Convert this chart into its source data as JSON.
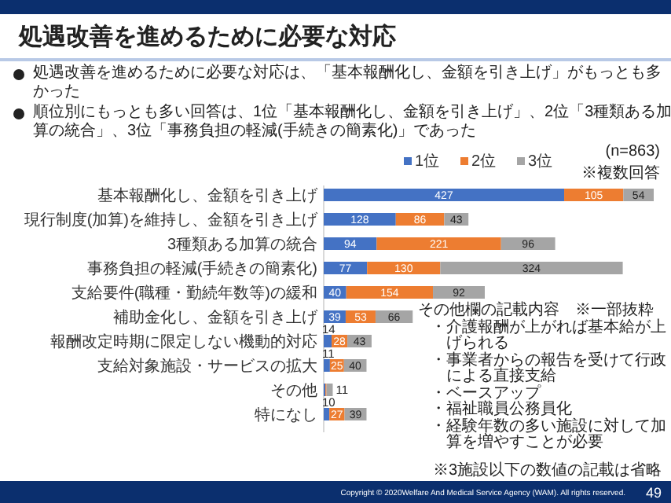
{
  "chart_data": {
    "type": "bar",
    "orientation": "horizontal",
    "stacked": true,
    "legend": "top",
    "title": "処遇改善を進めるために必要な対応",
    "annotations": [
      "処遇改善を進めるために必要な対応は、「基本報酬化し、金額を引き上げ」がもっとも多かった",
      "順位別にもっとも多い回答は、1位「基本報酬化し、金額を引き上げ」、2位「3種類ある加算の統合」、3位「事務負担の軽減(手続きの簡素化)」であった",
      "(n=863)",
      "※複数回答",
      "その他欄の記載内容　※一部抜粋",
      "・介護報酬が上がれば基本給が上げられる",
      "・事業者からの報告を受けて行政による直接支給",
      "・ベースアップ",
      "・福祉職員公務員化",
      "・経験年数の多い施設に対して加算を増やすことが必要",
      "※3施設以下の数値の記載は省略",
      "Copyright © 2020Welfare And Medical Service Agency (WAM). All rights reserved.",
      "49"
    ],
    "categories": [
      "基本報酬化し、金額を引き上げ",
      "現行制度(加算)を維持し、金額を引き上げ",
      "3種類ある加算の統合",
      "事務負担の軽減(手続きの簡素化)",
      "支給要件(職種・勤続年数等)の緩和",
      "補助金化し、金額を引き上げ",
      "報酬改定時期に限定しない機動的対応",
      "支給対象施設・サービスの拡大",
      "その他",
      "特になし"
    ],
    "series": [
      {
        "name": "1位",
        "color": "#4472c4",
        "values": [
          427,
          128,
          94,
          77,
          40,
          39,
          14,
          11,
          3,
          10
        ],
        "value_labels": [
          "427",
          "128",
          "94",
          "77",
          "40",
          "39",
          "14",
          "11",
          null,
          "10"
        ]
      },
      {
        "name": "2位",
        "color": "#ed7d31",
        "values": [
          105,
          86,
          221,
          130,
          154,
          53,
          28,
          25,
          2,
          27
        ],
        "value_labels": [
          "105",
          "86",
          "221",
          "130",
          "154",
          "53",
          "28",
          "25",
          null,
          "27"
        ]
      },
      {
        "name": "3位",
        "color": "#a5a5a5",
        "values": [
          54,
          43,
          96,
          324,
          92,
          66,
          43,
          40,
          11,
          39
        ],
        "value_labels": [
          "54",
          "43",
          "96",
          "324",
          "92",
          "66",
          "43",
          "40",
          "11",
          "39"
        ]
      }
    ]
  }
}
